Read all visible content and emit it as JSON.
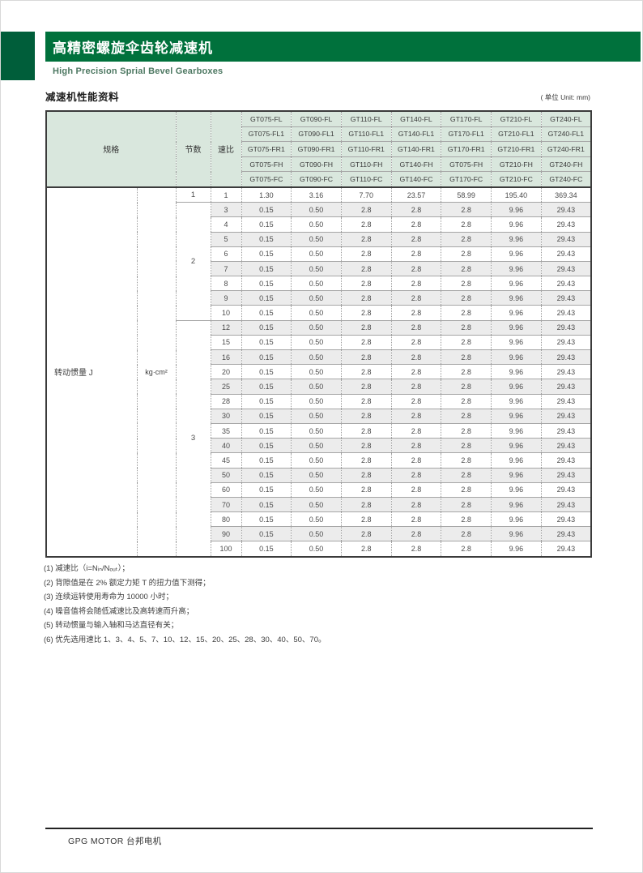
{
  "header": {
    "title": "高精密螺旋伞齿轮减速机",
    "subtitle": "High Precision Sprial Bevel Gearboxes"
  },
  "section": {
    "title": "减速机性能资料",
    "unit_note": "( 单位 Unit: mm)"
  },
  "table": {
    "spec_header": "规格",
    "stages_header": "节数",
    "ratio_header": "速比",
    "model_rows": [
      [
        "GT075-FL",
        "GT090-FL",
        "GT110-FL",
        "GT140-FL",
        "GT170-FL",
        "GT210-FL",
        "GT240-FL"
      ],
      [
        "GT075-FL1",
        "GT090-FL1",
        "GT110-FL1",
        "GT140-FL1",
        "GT170-FL1",
        "GT210-FL1",
        "GT240-FL1"
      ],
      [
        "GT075-FR1",
        "GT090-FR1",
        "GT110-FR1",
        "GT140-FR1",
        "GT170-FR1",
        "GT210-FR1",
        "GT240-FR1"
      ],
      [
        "GT075-FH",
        "GT090-FH",
        "GT110-FH",
        "GT140-FH",
        "GT075-FH",
        "GT210-FH",
        "GT240-FH"
      ],
      [
        "GT075-FC",
        "GT090-FC",
        "GT110-FC",
        "GT140-FC",
        "GT170-FC",
        "GT210-FC",
        "GT240-FC"
      ]
    ],
    "spec_name": "转动惯量 J",
    "spec_unit": "kg·cm²",
    "sections": [
      {
        "stages": "1",
        "rows": [
          {
            "ratio": "1",
            "values": [
              "1.30",
              "3.16",
              "7.70",
              "23.57",
              "58.99",
              "195.40",
              "369.34"
            ]
          }
        ]
      },
      {
        "stages": "2",
        "rows": [
          {
            "ratio": "3",
            "values": [
              "0.15",
              "0.50",
              "2.8",
              "2.8",
              "2.8",
              "9.96",
              "29.43"
            ]
          },
          {
            "ratio": "4",
            "values": [
              "0.15",
              "0.50",
              "2.8",
              "2.8",
              "2.8",
              "9.96",
              "29.43"
            ]
          },
          {
            "ratio": "5",
            "values": [
              "0.15",
              "0.50",
              "2.8",
              "2.8",
              "2.8",
              "9.96",
              "29.43"
            ]
          },
          {
            "ratio": "6",
            "values": [
              "0.15",
              "0.50",
              "2.8",
              "2.8",
              "2.8",
              "9.96",
              "29.43"
            ]
          },
          {
            "ratio": "7",
            "values": [
              "0.15",
              "0.50",
              "2.8",
              "2.8",
              "2.8",
              "9.96",
              "29.43"
            ]
          },
          {
            "ratio": "8",
            "values": [
              "0.15",
              "0.50",
              "2.8",
              "2.8",
              "2.8",
              "9.96",
              "29.43"
            ]
          },
          {
            "ratio": "9",
            "values": [
              "0.15",
              "0.50",
              "2.8",
              "2.8",
              "2.8",
              "9.96",
              "29.43"
            ]
          },
          {
            "ratio": "10",
            "values": [
              "0.15",
              "0.50",
              "2.8",
              "2.8",
              "2.8",
              "9.96",
              "29.43"
            ]
          }
        ]
      },
      {
        "stages": "3",
        "rows": [
          {
            "ratio": "12",
            "values": [
              "0.15",
              "0.50",
              "2.8",
              "2.8",
              "2.8",
              "9.96",
              "29.43"
            ]
          },
          {
            "ratio": "15",
            "values": [
              "0.15",
              "0.50",
              "2.8",
              "2.8",
              "2.8",
              "9.96",
              "29.43"
            ]
          },
          {
            "ratio": "16",
            "values": [
              "0.15",
              "0.50",
              "2.8",
              "2.8",
              "2.8",
              "9.96",
              "29.43"
            ]
          },
          {
            "ratio": "20",
            "values": [
              "0.15",
              "0.50",
              "2.8",
              "2.8",
              "2.8",
              "9.96",
              "29.43"
            ]
          },
          {
            "ratio": "25",
            "values": [
              "0.15",
              "0.50",
              "2.8",
              "2.8",
              "2.8",
              "9.96",
              "29.43"
            ]
          },
          {
            "ratio": "28",
            "values": [
              "0.15",
              "0.50",
              "2.8",
              "2.8",
              "2.8",
              "9.96",
              "29.43"
            ]
          },
          {
            "ratio": "30",
            "values": [
              "0.15",
              "0.50",
              "2.8",
              "2.8",
              "2.8",
              "9.96",
              "29.43"
            ]
          },
          {
            "ratio": "35",
            "values": [
              "0.15",
              "0.50",
              "2.8",
              "2.8",
              "2.8",
              "9.96",
              "29.43"
            ]
          },
          {
            "ratio": "40",
            "values": [
              "0.15",
              "0.50",
              "2.8",
              "2.8",
              "2.8",
              "9.96",
              "29.43"
            ]
          },
          {
            "ratio": "45",
            "values": [
              "0.15",
              "0.50",
              "2.8",
              "2.8",
              "2.8",
              "9.96",
              "29.43"
            ]
          },
          {
            "ratio": "50",
            "values": [
              "0.15",
              "0.50",
              "2.8",
              "2.8",
              "2.8",
              "9.96",
              "29.43"
            ]
          },
          {
            "ratio": "60",
            "values": [
              "0.15",
              "0.50",
              "2.8",
              "2.8",
              "2.8",
              "9.96",
              "29.43"
            ]
          },
          {
            "ratio": "70",
            "values": [
              "0.15",
              "0.50",
              "2.8",
              "2.8",
              "2.8",
              "9.96",
              "29.43"
            ]
          },
          {
            "ratio": "80",
            "values": [
              "0.15",
              "0.50",
              "2.8",
              "2.8",
              "2.8",
              "9.96",
              "29.43"
            ]
          },
          {
            "ratio": "90",
            "values": [
              "0.15",
              "0.50",
              "2.8",
              "2.8",
              "2.8",
              "9.96",
              "29.43"
            ]
          },
          {
            "ratio": "100",
            "values": [
              "0.15",
              "0.50",
              "2.8",
              "2.8",
              "2.8",
              "9.96",
              "29.43"
            ]
          }
        ]
      }
    ]
  },
  "notes": [
    "(1) 减速比（i=Nᵢₙ/Nₒᵤₜ）；",
    "(2) 背隙值是在 2% 额定力矩 T 的扭力值下测得；",
    "(3) 连续运转使用寿命为 10000 小时；",
    "(4) 噪音值将会随低减速比及高转速而升高；",
    "(5) 转动惯量与输入轴和马达直径有关；",
    "(6) 优先选用速比 1、3、4、5、7、10、12、15、20、25、28、30、40、50、70。"
  ],
  "footer": {
    "brand": "GPG MOTOR 台邦电机"
  },
  "colors": {
    "header_bar": "#00713C",
    "accent_block": "#005E3A",
    "subtitle": "#4D7862",
    "table_header_bg": "#D9E7DD",
    "row_shade": "#ECECEC"
  }
}
